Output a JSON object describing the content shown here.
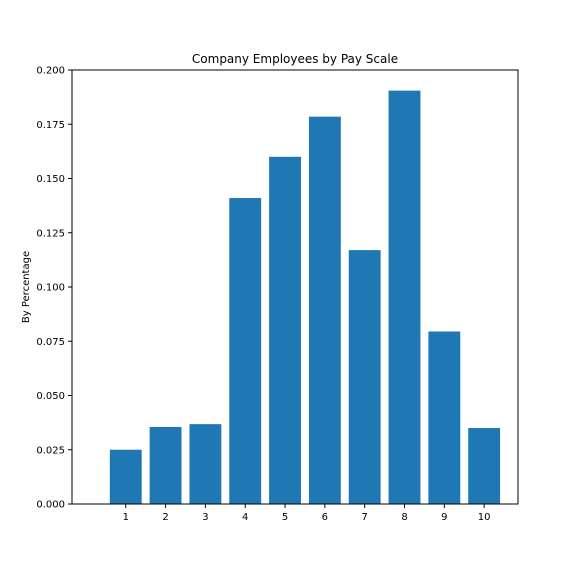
{
  "chart_data": {
    "type": "bar",
    "title": "Company Employees by Pay Scale",
    "xlabel": "",
    "ylabel": "By Percentage",
    "categories": [
      "1",
      "2",
      "3",
      "4",
      "5",
      "6",
      "7",
      "8",
      "9",
      "10"
    ],
    "values": [
      0.025,
      0.0355,
      0.0368,
      0.141,
      0.16,
      0.1785,
      0.117,
      0.1905,
      0.0795,
      0.035
    ],
    "ylim": [
      0,
      0.2
    ],
    "yticks": [
      "0.000",
      "0.025",
      "0.050",
      "0.075",
      "0.100",
      "0.125",
      "0.150",
      "0.175",
      "0.200"
    ],
    "bar_color": "#1f77b4",
    "grid": false,
    "legend": "none"
  }
}
